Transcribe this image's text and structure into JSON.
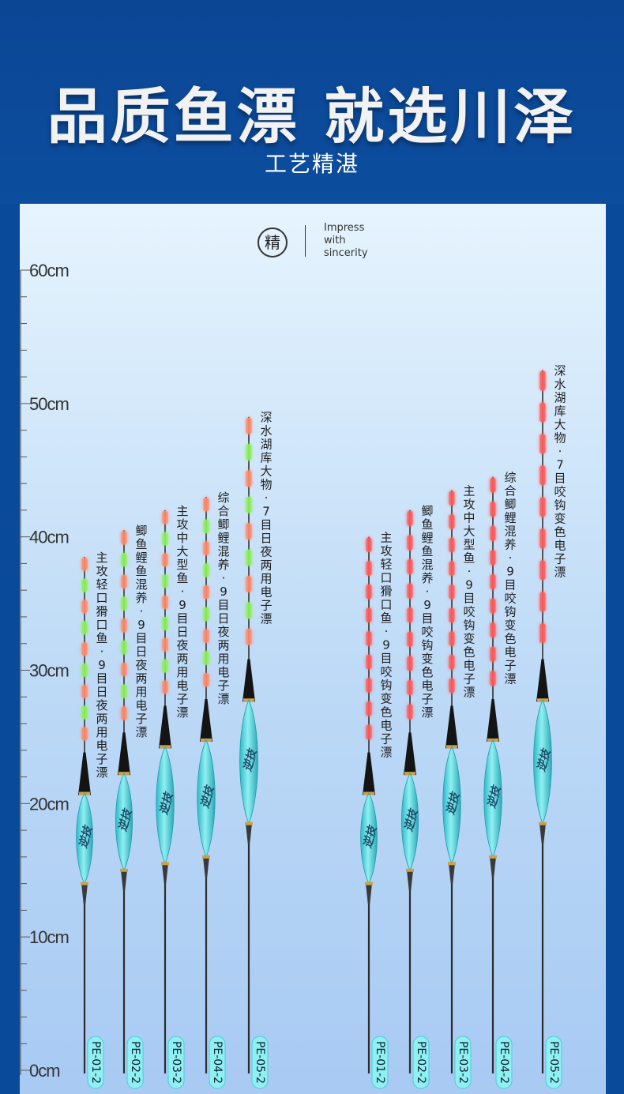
{
  "header": {
    "title": "品质鱼漂 就选川泽",
    "subtitle": "工艺精湛"
  },
  "badge": {
    "char": "精",
    "lines": [
      "Impress",
      "with",
      "sincerity"
    ]
  },
  "ruler": {
    "labels": [
      "60cm",
      "50cm",
      "40cm",
      "30cm",
      "20cm",
      "10cm",
      "0cm"
    ],
    "max_cm": 60
  },
  "colors": {
    "header_bg": "#0b4694",
    "body_cyan": "#5fd6df",
    "red_segment": "#ff5b5b",
    "green_segment": "#8ef05a",
    "orange_segment": "#ff8a6a"
  },
  "floats": [
    {
      "code": "PE-01-2",
      "desc": "主攻轻口猾口鱼-9目日夜两用电子漂",
      "mode": "day-night",
      "top_cm": 38.5,
      "body_top_cm": 21,
      "body_bot_cm": 14
    },
    {
      "code": "PE-02-2",
      "desc": "鲫鱼鲤鱼混养-9目日夜两用电子漂",
      "mode": "day-night",
      "top_cm": 40.5,
      "body_top_cm": 22.5,
      "body_bot_cm": 15
    },
    {
      "code": "PE-03-2",
      "desc": "主攻中大型鱼-9目日夜两用电子漂",
      "mode": "day-night",
      "top_cm": 42,
      "body_top_cm": 24.5,
      "body_bot_cm": 15.5
    },
    {
      "code": "PE-04-2",
      "desc": "综合鲫鲤混养-9目日夜两用电子漂",
      "mode": "day-night",
      "top_cm": 43,
      "body_top_cm": 25,
      "body_bot_cm": 16
    },
    {
      "code": "PE-05-2",
      "desc": "深水湖库大物-7目日夜两用电子漂",
      "mode": "day-night",
      "top_cm": 49,
      "body_top_cm": 28,
      "body_bot_cm": 18.5
    },
    {
      "code": "PE-01-2",
      "desc": "主攻轻口猾口鱼-9目咬钩变色电子漂",
      "mode": "bite-color",
      "top_cm": 40,
      "body_top_cm": 21,
      "body_bot_cm": 14
    },
    {
      "code": "PE-02-2",
      "desc": "鲫鱼鲤鱼混养-9目咬钩变色电子漂",
      "mode": "bite-color",
      "top_cm": 42,
      "body_top_cm": 22.5,
      "body_bot_cm": 15
    },
    {
      "code": "PE-03-2",
      "desc": "主攻中大型鱼-9目咬钩变色电子漂",
      "mode": "bite-color",
      "top_cm": 43.5,
      "body_top_cm": 24.5,
      "body_bot_cm": 15.5
    },
    {
      "code": "PE-04-2",
      "desc": "综合鲫鲤混养-9目咬钩变色电子漂",
      "mode": "bite-color",
      "top_cm": 44.5,
      "body_top_cm": 25,
      "body_bot_cm": 16
    },
    {
      "code": "PE-05-2",
      "desc": "深水湖库大物-7目咬钩变色电子漂",
      "mode": "bite-color",
      "top_cm": 52.5,
      "body_top_cm": 28,
      "body_bot_cm": 18.5
    }
  ],
  "body_brand": "逆技"
}
